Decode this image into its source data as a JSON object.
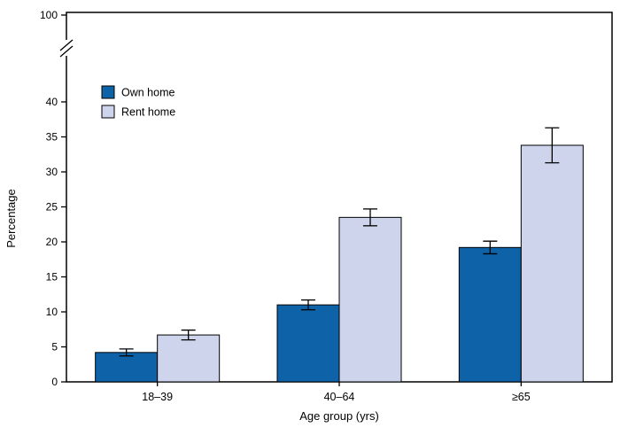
{
  "chart_data": {
    "type": "bar",
    "title": "",
    "xlabel": "Age group (yrs)",
    "ylabel": "Percentage",
    "categories": [
      "18–39",
      "40–64",
      "≥65"
    ],
    "series": [
      {
        "name": "Own home",
        "color": "#0e63a8",
        "values": [
          4.2,
          11.0,
          19.2
        ],
        "errors": [
          0.5,
          0.7,
          0.9
        ]
      },
      {
        "name": "Rent home",
        "color": "#cdd4eb",
        "values": [
          6.7,
          23.5,
          33.8
        ],
        "errors": [
          0.7,
          1.2,
          2.5
        ]
      }
    ],
    "yticks": [
      0,
      5,
      10,
      15,
      20,
      25,
      30,
      35,
      40
    ],
    "ytop_label": "100",
    "axis_break": true,
    "ylim_linear": [
      0,
      44
    ],
    "legend_position": "top-left",
    "grid": false,
    "frame_color": "#000000",
    "background_color": "#ffffff"
  }
}
